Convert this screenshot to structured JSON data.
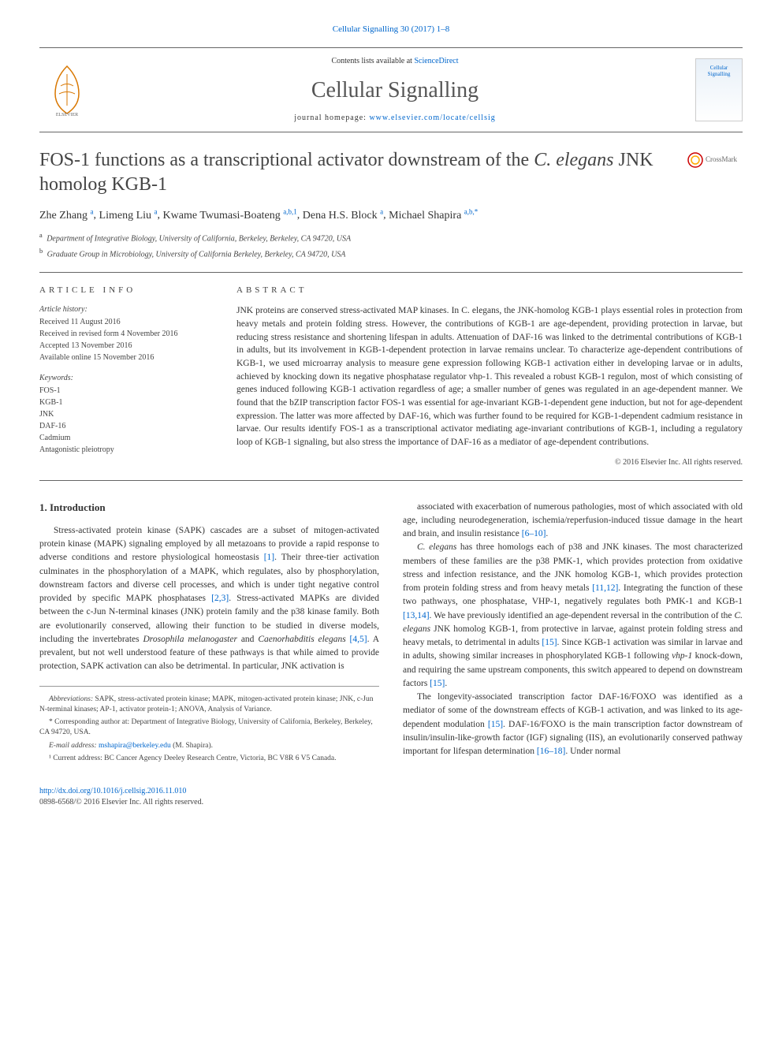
{
  "citation": "Cellular Signalling 30 (2017) 1–8",
  "header": {
    "contents_prefix": "Contents lists available at ",
    "contents_link": "ScienceDirect",
    "journal_name": "Cellular Signalling",
    "homepage_prefix": "journal homepage: ",
    "homepage_url": "www.elsevier.com/locate/cellsig",
    "cover_text_1": "Cellular",
    "cover_text_2": "Signalling"
  },
  "title": {
    "prefix": "FOS-1 functions as a transcriptional activator downstream of the ",
    "italic": "C. elegans",
    "suffix": " JNK homolog KGB-1"
  },
  "crossmark_label": "CrossMark",
  "authors": [
    {
      "name": "Zhe Zhang",
      "sup": "a"
    },
    {
      "name": "Limeng Liu",
      "sup": "a"
    },
    {
      "name": "Kwame Twumasi-Boateng",
      "sup": "a,b,1"
    },
    {
      "name": "Dena H.S. Block",
      "sup": "a"
    },
    {
      "name": "Michael Shapira",
      "sup": "a,b,*"
    }
  ],
  "affiliations": [
    {
      "sup": "a",
      "text": "Department of Integrative Biology, University of California, Berkeley, Berkeley, CA 94720, USA"
    },
    {
      "sup": "b",
      "text": "Graduate Group in Microbiology, University of California Berkeley, Berkeley, CA 94720, USA"
    }
  ],
  "article_info_label": "article info",
  "abstract_label": "abstract",
  "history": {
    "label": "Article history:",
    "items": [
      "Received 11 August 2016",
      "Received in revised form 4 November 2016",
      "Accepted 13 November 2016",
      "Available online 15 November 2016"
    ]
  },
  "keywords": {
    "label": "Keywords:",
    "items": [
      "FOS-1",
      "KGB-1",
      "JNK",
      "DAF-16",
      "Cadmium",
      "Antagonistic pleiotropy"
    ]
  },
  "abstract_text": "JNK proteins are conserved stress-activated MAP kinases. In C. elegans, the JNK-homolog KGB-1 plays essential roles in protection from heavy metals and protein folding stress. However, the contributions of KGB-1 are age-dependent, providing protection in larvae, but reducing stress resistance and shortening lifespan in adults. Attenuation of DAF-16 was linked to the detrimental contributions of KGB-1 in adults, but its involvement in KGB-1-dependent protection in larvae remains unclear. To characterize age-dependent contributions of KGB-1, we used microarray analysis to measure gene expression following KGB-1 activation either in developing larvae or in adults, achieved by knocking down its negative phosphatase regulator vhp-1. This revealed a robust KGB-1 regulon, most of which consisting of genes induced following KGB-1 activation regardless of age; a smaller number of genes was regulated in an age-dependent manner. We found that the bZIP transcription factor FOS-1 was essential for age-invariant KGB-1-dependent gene induction, but not for age-dependent expression. The latter was more affected by DAF-16, which was further found to be required for KGB-1-dependent cadmium resistance in larvae. Our results identify FOS-1 as a transcriptional activator mediating age-invariant contributions of KGB-1, including a regulatory loop of KGB-1 signaling, but also stress the importance of DAF-16 as a mediator of age-dependent contributions.",
  "copyright": "© 2016 Elsevier Inc. All rights reserved.",
  "intro_heading": "1. Introduction",
  "body_left": [
    "Stress-activated protein kinase (SAPK) cascades are a subset of mitogen-activated protein kinase (MAPK) signaling employed by all metazoans to provide a rapid response to adverse conditions and restore physiological homeostasis [1]. Their three-tier activation culminates in the phosphorylation of a MAPK, which regulates, also by phosphorylation, downstream factors and diverse cell processes, and which is under tight negative control provided by specific MAPK phosphatases [2,3]. Stress-activated MAPKs are divided between the c-Jun N-terminal kinases (JNK) protein family and the p38 kinase family. Both are evolutionarily conserved, allowing their function to be studied in diverse models, including the invertebrates Drosophila melanogaster and Caenorhabditis elegans [4,5]. A prevalent, but not well understood feature of these pathways is that while aimed to provide protection, SAPK activation can also be detrimental. In particular, JNK activation is"
  ],
  "body_right": [
    "associated with exacerbation of numerous pathologies, most of which associated with old age, including neurodegeneration, ischemia/reperfusion-induced tissue damage in the heart and brain, and insulin resistance [6–10].",
    "C. elegans has three homologs each of p38 and JNK kinases. The most characterized members of these families are the p38 PMK-1, which provides protection from oxidative stress and infection resistance, and the JNK homolog KGB-1, which provides protection from protein folding stress and from heavy metals [11,12]. Integrating the function of these two pathways, one phosphatase, VHP-1, negatively regulates both PMK-1 and KGB-1 [13,14]. We have previously identified an age-dependent reversal in the contribution of the C. elegans JNK homolog KGB-1, from protective in larvae, against protein folding stress and heavy metals, to detrimental in adults [15]. Since KGB-1 activation was similar in larvae and in adults, showing similar increases in phosphorylated KGB-1 following vhp-1 knock-down, and requiring the same upstream components, this switch appeared to depend on downstream factors [15].",
    "The longevity-associated transcription factor DAF-16/FOXO was identified as a mediator of some of the downstream effects of KGB-1 activation, and was linked to its age-dependent modulation [15]. DAF-16/FOXO is the main transcription factor downstream of insulin/insulin-like-growth factor (IGF) signaling (IIS), an evolutionarily conserved pathway important for lifespan determination [16–18]. Under normal"
  ],
  "footnotes": {
    "abbrev_label": "Abbreviations:",
    "abbrev_text": " SAPK, stress-activated protein kinase; MAPK, mitogen-activated protein kinase; JNK, c-Jun N-terminal kinases; AP-1, activator protein-1; ANOVA, Analysis of Variance.",
    "corresp": "* Corresponding author at: Department of Integrative Biology, University of California, Berkeley, Berkeley, CA 94720, USA.",
    "email_label": "E-mail address: ",
    "email": "mshapira@berkeley.edu",
    "email_suffix": " (M. Shapira).",
    "current_addr": "¹ Current address: BC Cancer Agency Deeley Research Centre, Victoria, BC V8R 6 V5 Canada."
  },
  "footer": {
    "doi": "http://dx.doi.org/10.1016/j.cellsig.2016.11.010",
    "issn": "0898-6568/© 2016 Elsevier Inc. All rights reserved."
  },
  "colors": {
    "link": "#0066cc",
    "text": "#333333",
    "border": "#666666"
  }
}
